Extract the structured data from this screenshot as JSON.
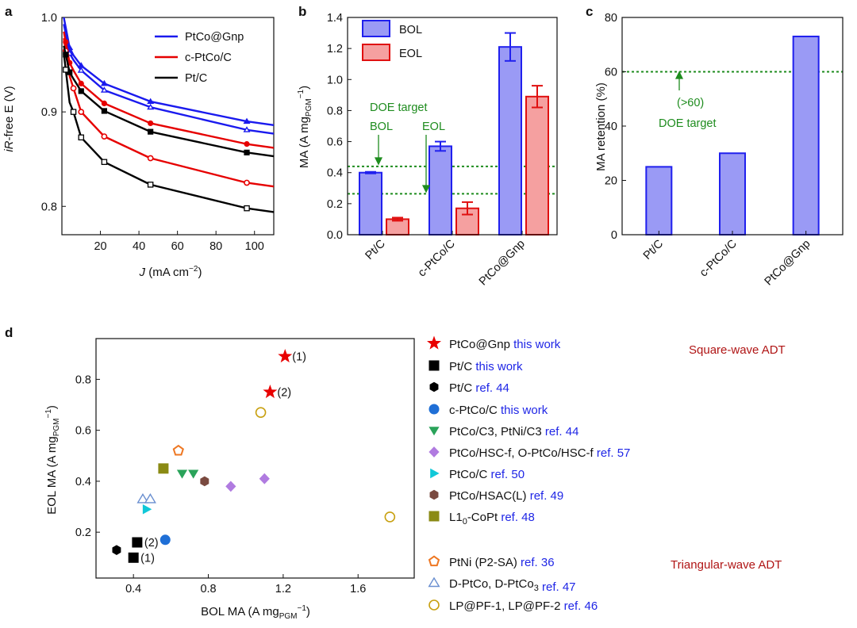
{
  "panel_labels": [
    "a",
    "b",
    "c",
    "d"
  ],
  "colors": {
    "ptco_gnp": "#1a1aee",
    "c_ptco": "#e60000",
    "ptc": "#000000",
    "bol_fill": "#9a9af5",
    "bol_edge": "#2020ee",
    "eol_fill": "#f5a0a0",
    "eol_edge": "#e01010",
    "doe_line": "#1e8c1e",
    "ref_blue": "#1f26e6",
    "adt_label": "#b01515"
  },
  "chart_data": [
    {
      "panel": "a",
      "type": "line",
      "xlabel_parts": [
        "J",
        " (mA cm",
        "−2",
        ")"
      ],
      "ylabel_parts": [
        "iR",
        "-free E (V)"
      ],
      "xlim": [
        0,
        110
      ],
      "ylim": [
        0.77,
        1.0
      ],
      "xticks": [
        20,
        40,
        60,
        80,
        100
      ],
      "xtick_labels": [
        "20",
        "40",
        "60",
        "80",
        "100"
      ],
      "yticks": [
        0.8,
        0.9,
        1.0
      ],
      "ytick_labels": [
        "0.8",
        "0.9",
        "1.0"
      ],
      "legend_position": "top-right",
      "series": [
        {
          "name": "PtCo@Gnp",
          "color": "#1a1aee",
          "marker": "filled-triangle",
          "x": [
            1,
            4,
            6,
            10,
            22,
            46,
            96,
            110
          ],
          "y": [
            1.0,
            0.968,
            0.96,
            0.949,
            0.93,
            0.911,
            0.89,
            0.886
          ],
          "marker_x": [
            4,
            10,
            22,
            46,
            96
          ]
        },
        {
          "name": "PtCo@Gnp",
          "color": "#1a1aee",
          "marker": "open-triangle",
          "x": [
            1,
            4,
            6,
            10,
            22,
            46,
            96,
            110
          ],
          "y": [
            0.993,
            0.962,
            0.955,
            0.944,
            0.923,
            0.905,
            0.881,
            0.877
          ],
          "marker_x": [
            4,
            10,
            22,
            46,
            96
          ]
        },
        {
          "name": "c-PtCo/C",
          "color": "#e60000",
          "marker": "filled-circle",
          "x": [
            1,
            4,
            6,
            10,
            22,
            46,
            96,
            110
          ],
          "y": [
            0.985,
            0.952,
            0.944,
            0.93,
            0.909,
            0.888,
            0.866,
            0.862
          ],
          "marker_x": [
            2,
            4,
            10,
            22,
            46,
            96
          ]
        },
        {
          "name": "c-PtCo/C",
          "color": "#e60000",
          "marker": "open-circle",
          "x": [
            1,
            4,
            6,
            10,
            22,
            46,
            96,
            110
          ],
          "y": [
            0.978,
            0.938,
            0.925,
            0.9,
            0.874,
            0.851,
            0.825,
            0.821
          ],
          "marker_x": [
            2,
            6,
            10,
            22,
            46,
            96
          ]
        },
        {
          "name": "Pt/C",
          "color": "#000000",
          "marker": "filled-square",
          "x": [
            1,
            4,
            6,
            10,
            22,
            46,
            96,
            110
          ],
          "y": [
            0.97,
            0.942,
            0.935,
            0.922,
            0.901,
            0.879,
            0.857,
            0.853
          ],
          "marker_x": [
            2,
            4,
            10,
            22,
            46,
            96
          ]
        },
        {
          "name": "Pt/C",
          "color": "#000000",
          "marker": "open-square",
          "x": [
            1,
            4,
            6,
            10,
            22,
            46,
            96,
            110
          ],
          "y": [
            0.962,
            0.91,
            0.9,
            0.873,
            0.847,
            0.823,
            0.798,
            0.794
          ],
          "marker_x": [
            2,
            6,
            10,
            22,
            46,
            96
          ]
        }
      ],
      "legend": [
        {
          "label": "PtCo@Gnp",
          "color": "#1a1aee"
        },
        {
          "label": "c-PtCo/C",
          "color": "#e60000"
        },
        {
          "label": "Pt/C",
          "color": "#000000"
        }
      ]
    },
    {
      "panel": "b",
      "type": "bar",
      "ylabel_parts": [
        "MA (A mg",
        "PGM",
        "−1",
        ")"
      ],
      "ylim": [
        0,
        1.4
      ],
      "yticks": [
        0,
        0.2,
        0.4,
        0.6,
        0.8,
        1.0,
        1.2,
        1.4
      ],
      "ytick_labels": [
        "0.0",
        "0.2",
        "0.4",
        "0.6",
        "0.8",
        "1.0",
        "1.2",
        "1.4"
      ],
      "categories": [
        "Pt/C",
        "c-PtCo/C",
        "PtCo@Gnp"
      ],
      "series": [
        {
          "name": "BOL",
          "values": [
            0.4,
            0.57,
            1.21
          ],
          "errors": [
            0.005,
            0.03,
            0.09
          ]
        },
        {
          "name": "EOL",
          "values": [
            0.1,
            0.17,
            0.89
          ],
          "errors": [
            0.01,
            0.04,
            0.07
          ]
        }
      ],
      "reference_lines": [
        0.44,
        0.264
      ],
      "annotations": [
        "DOE target",
        "BOL",
        "EOL"
      ],
      "legend_position": "top-left"
    },
    {
      "panel": "c",
      "type": "bar",
      "ylabel": "MA retention (%)",
      "ylim": [
        0,
        80
      ],
      "yticks": [
        0,
        20,
        40,
        60,
        80
      ],
      "ytick_labels": [
        "0",
        "20",
        "40",
        "60",
        "80"
      ],
      "categories": [
        "Pt/C",
        "c-PtCo/C",
        "PtCo@Gnp"
      ],
      "values": [
        25,
        30,
        73
      ],
      "reference_lines": [
        60
      ],
      "annotations": [
        "(>60)",
        "DOE target"
      ]
    },
    {
      "panel": "d",
      "type": "scatter",
      "xlabel_parts": [
        "BOL MA (A mg",
        "PGM",
        "−1",
        ")"
      ],
      "ylabel_parts": [
        "EOL MA (A mg",
        "PGM",
        "−1",
        ")"
      ],
      "xlim": [
        0.2,
        1.9
      ],
      "ylim": [
        0.02,
        0.96
      ],
      "xticks": [
        0.4,
        0.8,
        1.2,
        1.6
      ],
      "xtick_labels": [
        "0.4",
        "0.8",
        "1.2",
        "1.6"
      ],
      "yticks": [
        0.2,
        0.4,
        0.6,
        0.8
      ],
      "ytick_labels": [
        "0.2",
        "0.4",
        "0.6",
        "0.8"
      ],
      "points": [
        {
          "group": "PtCo@Gnp",
          "marker": "star",
          "color": "#e80000",
          "x": 1.21,
          "y": 0.89,
          "label": "(1)"
        },
        {
          "group": "PtCo@Gnp",
          "marker": "star",
          "color": "#e80000",
          "x": 1.13,
          "y": 0.75,
          "label": "(2)"
        },
        {
          "group": "Pt/C this work",
          "marker": "square",
          "color": "#000000",
          "x": 0.42,
          "y": 0.16,
          "label": "(2)"
        },
        {
          "group": "Pt/C this work",
          "marker": "square",
          "color": "#000000",
          "x": 0.4,
          "y": 0.1,
          "label": "(1)"
        },
        {
          "group": "Pt/C ref. 44",
          "marker": "hexagon",
          "color": "#000000",
          "x": 0.31,
          "y": 0.13
        },
        {
          "group": "c-PtCo/C",
          "marker": "circle",
          "color": "#1f6fd6",
          "x": 0.57,
          "y": 0.17
        },
        {
          "group": "PtCo/C3, PtNi/C3",
          "marker": "down-triangle",
          "color": "#2aa35a",
          "x": 0.66,
          "y": 0.43
        },
        {
          "group": "PtCo/C3, PtNi/C3",
          "marker": "down-triangle",
          "color": "#2aa35a",
          "x": 0.72,
          "y": 0.43
        },
        {
          "group": "PtCo/HSC-f, O-PtCo/HSC-f",
          "marker": "diamond",
          "color": "#b07be0",
          "x": 0.92,
          "y": 0.38
        },
        {
          "group": "PtCo/HSC-f, O-PtCo/HSC-f",
          "marker": "diamond",
          "color": "#b07be0",
          "x": 1.1,
          "y": 0.41
        },
        {
          "group": "PtCo/C ref. 50",
          "marker": "right-triangle",
          "color": "#10c8d8",
          "x": 0.47,
          "y": 0.29
        },
        {
          "group": "PtCo/HSAC(L)",
          "marker": "hexagon",
          "color": "#7a4a40",
          "x": 0.78,
          "y": 0.4
        },
        {
          "group": "L1o-CoPt",
          "marker": "square",
          "color": "#8a8a14",
          "x": 0.56,
          "y": 0.45
        },
        {
          "group": "PtNi (P2-SA)",
          "marker": "open-pentagon",
          "color": "#ee7722",
          "x": 0.64,
          "y": 0.52
        },
        {
          "group": "D-PtCo, D-PtCo3",
          "marker": "open-up-triangle",
          "color": "#6a8fd0",
          "x": 0.45,
          "y": 0.33
        },
        {
          "group": "D-PtCo, D-PtCo3",
          "marker": "open-up-triangle",
          "color": "#6a8fd0",
          "x": 0.49,
          "y": 0.33
        },
        {
          "group": "LP@PF-1, LP@PF-2",
          "marker": "open-circle",
          "color": "#c8a010",
          "x": 1.08,
          "y": 0.67
        },
        {
          "group": "LP@PF-1, LP@PF-2",
          "marker": "open-circle",
          "color": "#c8a010",
          "x": 1.77,
          "y": 0.26
        }
      ]
    }
  ],
  "legend_d": [
    {
      "marker": "star",
      "color": "#e80000",
      "name": "PtCo@Gnp",
      "ref": "this work"
    },
    {
      "marker": "square",
      "color": "#000000",
      "name": "Pt/C",
      "ref": "this work"
    },
    {
      "marker": "hexagon",
      "color": "#000000",
      "name": "Pt/C",
      "ref": "ref. 44"
    },
    {
      "marker": "circle",
      "color": "#1f6fd6",
      "name": "c-PtCo/C",
      "ref": "this work"
    },
    {
      "marker": "down-triangle",
      "color": "#2aa35a",
      "name": "PtCo/C3, PtNi/C3",
      "ref": "ref. 44"
    },
    {
      "marker": "diamond",
      "color": "#b07be0",
      "name": "PtCo/HSC-f, O-PtCo/HSC-f",
      "ref": "ref. 57"
    },
    {
      "marker": "right-triangle",
      "color": "#10c8d8",
      "name": "PtCo/C",
      "ref": "ref. 50"
    },
    {
      "marker": "hexagon",
      "color": "#7a4a40",
      "name": "PtCo/HSAC(L)",
      "ref": "ref. 49"
    },
    {
      "marker": "square",
      "color": "#8a8a14",
      "name": "L1",
      "sub": "0",
      "name_after": "-CoPt",
      "ref": "ref. 48"
    },
    {
      "marker": "open-pentagon",
      "color": "#ee7722",
      "name": "PtNi (P2-SA)",
      "ref": "ref. 36"
    },
    {
      "marker": "open-up-triangle",
      "color": "#6a8fd0",
      "name": "D-PtCo, D-PtCo",
      "sub": "3",
      "name_after": "",
      "ref": "ref. 47"
    },
    {
      "marker": "open-circle",
      "color": "#c8a010",
      "name": "LP@PF-1, LP@PF-2",
      "ref": "ref. 46"
    }
  ],
  "adt_labels": {
    "square": "Square-wave ADT",
    "triangular": "Triangular-wave ADT"
  }
}
